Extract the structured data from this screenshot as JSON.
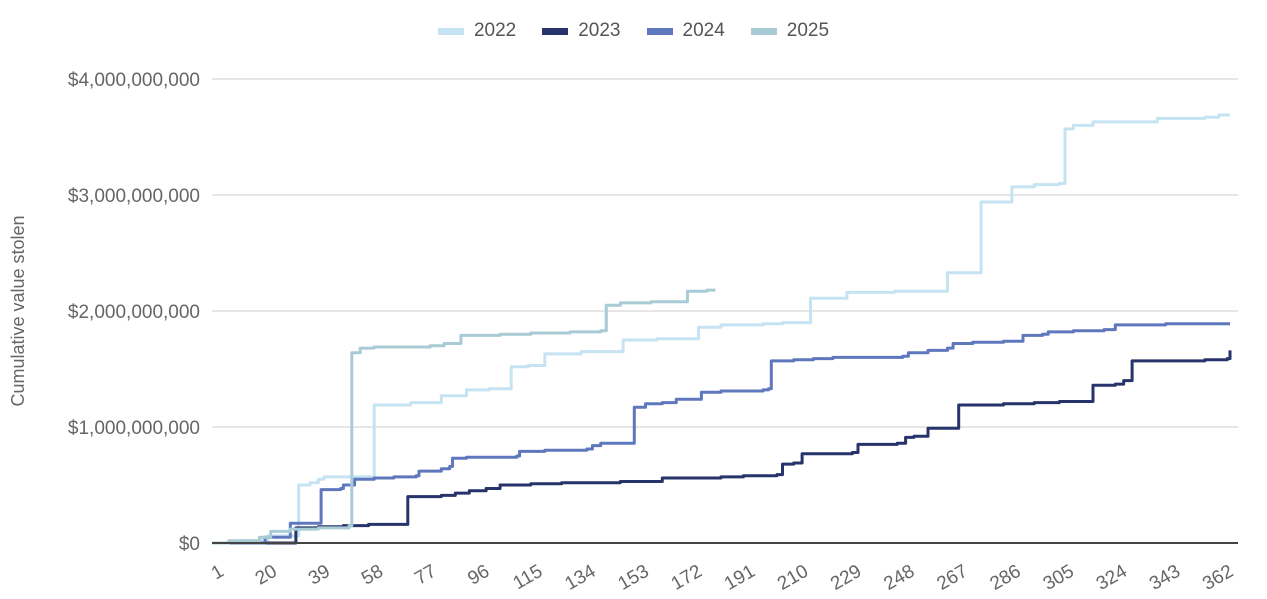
{
  "chart_data": {
    "type": "line",
    "title": "",
    "xlabel": "",
    "ylabel": "Cumulative value stolen",
    "xlim": [
      1,
      365
    ],
    "ylim": [
      0,
      4000000000
    ],
    "x_ticks": [
      1,
      20,
      39,
      58,
      77,
      96,
      115,
      134,
      153,
      172,
      191,
      210,
      229,
      248,
      267,
      286,
      305,
      324,
      343,
      362
    ],
    "y_ticks": [
      0,
      1000000000,
      2000000000,
      3000000000,
      4000000000
    ],
    "y_tick_labels": [
      "$0",
      "$1,000,000,000",
      "$2,000,000,000",
      "$3,000,000,000",
      "$4,000,000,000"
    ],
    "grid": "horizontal",
    "legend_position": "top",
    "line_shape": "step",
    "series": [
      {
        "name": "2022",
        "color": "#c5e3f3",
        "points": [
          [
            1,
            0
          ],
          [
            11,
            20000000.0
          ],
          [
            21,
            60000000.0
          ],
          [
            32,
            500000000.0
          ],
          [
            36,
            520000000.0
          ],
          [
            39,
            550000000.0
          ],
          [
            41,
            570000000.0
          ],
          [
            59,
            1190000000.0
          ],
          [
            72,
            1210000000.0
          ],
          [
            83,
            1270000000.0
          ],
          [
            92,
            1320000000.0
          ],
          [
            100,
            1330000000.0
          ],
          [
            108,
            1520000000.0
          ],
          [
            114,
            1530000000.0
          ],
          [
            120,
            1630000000.0
          ],
          [
            133,
            1650000000.0
          ],
          [
            148,
            1750000000.0
          ],
          [
            160,
            1760000000.0
          ],
          [
            175,
            1860000000.0
          ],
          [
            183,
            1880000000.0
          ],
          [
            198,
            1890000000.0
          ],
          [
            205,
            1900000000.0
          ],
          [
            215,
            2110000000.0
          ],
          [
            228,
            2160000000.0
          ],
          [
            245,
            2170000000.0
          ],
          [
            264,
            2330000000.0
          ],
          [
            276,
            2940000000.0
          ],
          [
            287,
            3070000000.0
          ],
          [
            295,
            3090000000.0
          ],
          [
            304,
            3100000000.0
          ],
          [
            306,
            3570000000.0
          ],
          [
            309,
            3600000000.0
          ],
          [
            316,
            3630000000.0
          ],
          [
            339,
            3660000000.0
          ],
          [
            356,
            3670000000.0
          ],
          [
            361,
            3690000000.0
          ],
          [
            365,
            3690000000.0
          ]
        ]
      },
      {
        "name": "2023",
        "color": "#27336b",
        "points": [
          [
            1,
            0
          ],
          [
            31,
            130000000.0
          ],
          [
            39,
            140000000.0
          ],
          [
            48,
            150000000.0
          ],
          [
            57,
            160000000.0
          ],
          [
            71,
            400000000.0
          ],
          [
            83,
            410000000.0
          ],
          [
            88,
            430000000.0
          ],
          [
            93,
            450000000.0
          ],
          [
            99,
            470000000.0
          ],
          [
            104,
            500000000.0
          ],
          [
            115,
            510000000.0
          ],
          [
            126,
            520000000.0
          ],
          [
            147,
            530000000.0
          ],
          [
            162,
            560000000.0
          ],
          [
            183,
            570000000.0
          ],
          [
            191,
            580000000.0
          ],
          [
            203,
            590000000.0
          ],
          [
            205,
            680000000.0
          ],
          [
            209,
            690000000.0
          ],
          [
            212,
            770000000.0
          ],
          [
            230,
            780000000.0
          ],
          [
            232,
            850000000.0
          ],
          [
            246,
            860000000.0
          ],
          [
            249,
            910000000.0
          ],
          [
            252,
            920000000.0
          ],
          [
            257,
            990000000.0
          ],
          [
            268,
            1190000000.0
          ],
          [
            284,
            1200000000.0
          ],
          [
            295,
            1210000000.0
          ],
          [
            304,
            1220000000.0
          ],
          [
            316,
            1360000000.0
          ],
          [
            324,
            1370000000.0
          ],
          [
            327,
            1400000000.0
          ],
          [
            330,
            1570000000.0
          ],
          [
            356,
            1580000000.0
          ],
          [
            364,
            1590000000.0
          ],
          [
            365,
            1660000000.0
          ]
        ]
      },
      {
        "name": "2024",
        "color": "#5f78bd",
        "points": [
          [
            1,
            0
          ],
          [
            20,
            50000000.0
          ],
          [
            29,
            170000000.0
          ],
          [
            40,
            460000000.0
          ],
          [
            47,
            470000000.0
          ],
          [
            48,
            500000000.0
          ],
          [
            52,
            550000000.0
          ],
          [
            59,
            560000000.0
          ],
          [
            66,
            570000000.0
          ],
          [
            74,
            580000000.0
          ],
          [
            75,
            620000000.0
          ],
          [
            83,
            640000000.0
          ],
          [
            86,
            660000000.0
          ],
          [
            87,
            730000000.0
          ],
          [
            92,
            740000000.0
          ],
          [
            110,
            750000000.0
          ],
          [
            111,
            790000000.0
          ],
          [
            120,
            800000000.0
          ],
          [
            135,
            810000000.0
          ],
          [
            137,
            840000000.0
          ],
          [
            140,
            860000000.0
          ],
          [
            152,
            1170000000.0
          ],
          [
            156,
            1200000000.0
          ],
          [
            162,
            1210000000.0
          ],
          [
            167,
            1240000000.0
          ],
          [
            176,
            1300000000.0
          ],
          [
            183,
            1310000000.0
          ],
          [
            198,
            1320000000.0
          ],
          [
            200,
            1330000000.0
          ],
          [
            201,
            1570000000.0
          ],
          [
            209,
            1580000000.0
          ],
          [
            216,
            1590000000.0
          ],
          [
            223,
            1600000000.0
          ],
          [
            248,
            1610000000.0
          ],
          [
            250,
            1640000000.0
          ],
          [
            257,
            1660000000.0
          ],
          [
            264,
            1680000000.0
          ],
          [
            266,
            1720000000.0
          ],
          [
            273,
            1730000000.0
          ],
          [
            284,
            1740000000.0
          ],
          [
            291,
            1790000000.0
          ],
          [
            298,
            1800000000.0
          ],
          [
            300,
            1820000000.0
          ],
          [
            309,
            1830000000.0
          ],
          [
            320,
            1840000000.0
          ],
          [
            324,
            1880000000.0
          ],
          [
            342,
            1890000000.0
          ],
          [
            365,
            1890000000.0
          ]
        ]
      },
      {
        "name": "2025",
        "color": "#a8cbd6",
        "points": [
          [
            1,
            0
          ],
          [
            7,
            20000000.0
          ],
          [
            18,
            50000000.0
          ],
          [
            22,
            100000000.0
          ],
          [
            29,
            120000000.0
          ],
          [
            39,
            130000000.0
          ],
          [
            50,
            150000000.0
          ],
          [
            51,
            1640000000.0
          ],
          [
            54,
            1680000000.0
          ],
          [
            59,
            1690000000.0
          ],
          [
            79,
            1700000000.0
          ],
          [
            84,
            1720000000.0
          ],
          [
            90,
            1790000000.0
          ],
          [
            104,
            1800000000.0
          ],
          [
            115,
            1810000000.0
          ],
          [
            129,
            1820000000.0
          ],
          [
            140,
            1830000000.0
          ],
          [
            142,
            2050000000.0
          ],
          [
            147,
            2070000000.0
          ],
          [
            158,
            2080000000.0
          ],
          [
            171,
            2170000000.0
          ],
          [
            178,
            2180000000.0
          ],
          [
            181,
            2180000000.0
          ]
        ]
      }
    ]
  }
}
